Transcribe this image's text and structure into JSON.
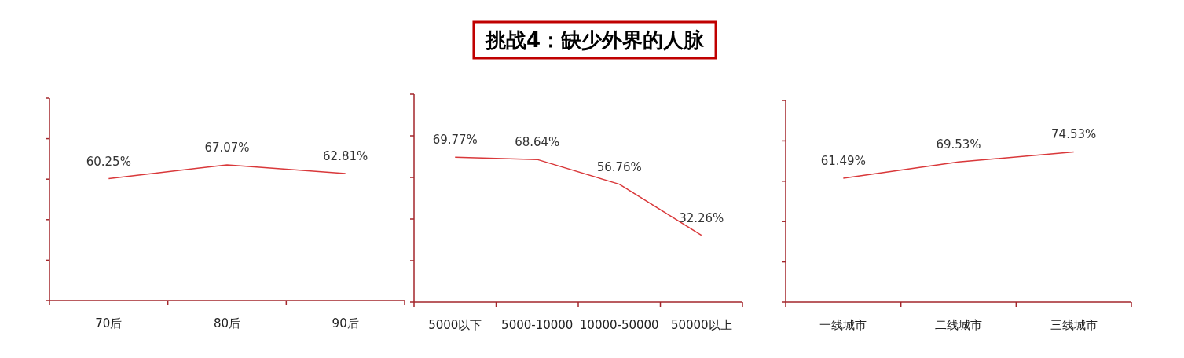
{
  "chart_data": [
    {
      "type": "other",
      "title": "挑战4：缺少外界的人脉"
    },
    {
      "type": "line",
      "categories": [
        "70后",
        "80后",
        "90后"
      ],
      "series": [
        {
          "color": "#d9383a",
          "values": [
            60.25,
            67.07,
            62.81
          ],
          "value_labels": [
            "60.25%",
            "67.07%",
            "62.81%"
          ]
        }
      ],
      "tick_labels": "x"
    },
    {
      "type": "line",
      "categories": [
        "5000以下",
        "5000-10000",
        "10000-50000",
        "50000以上"
      ],
      "series": [
        {
          "color": "#d9383a",
          "values": [
            69.77,
            68.64,
            56.76,
            32.26
          ],
          "value_labels": [
            "69.77%",
            "68.64%",
            "56.76%",
            "32.26%"
          ]
        }
      ],
      "tick_labels": "x"
    },
    {
      "type": "line",
      "categories": [
        "一线城市",
        "二线城市",
        "三线城市"
      ],
      "series": [
        {
          "color": "#d9383a",
          "values": [
            61.49,
            69.53,
            74.53
          ],
          "value_labels": [
            "61.49%",
            "69.53%",
            "74.53%"
          ]
        }
      ],
      "tick_labels": "x"
    }
  ]
}
